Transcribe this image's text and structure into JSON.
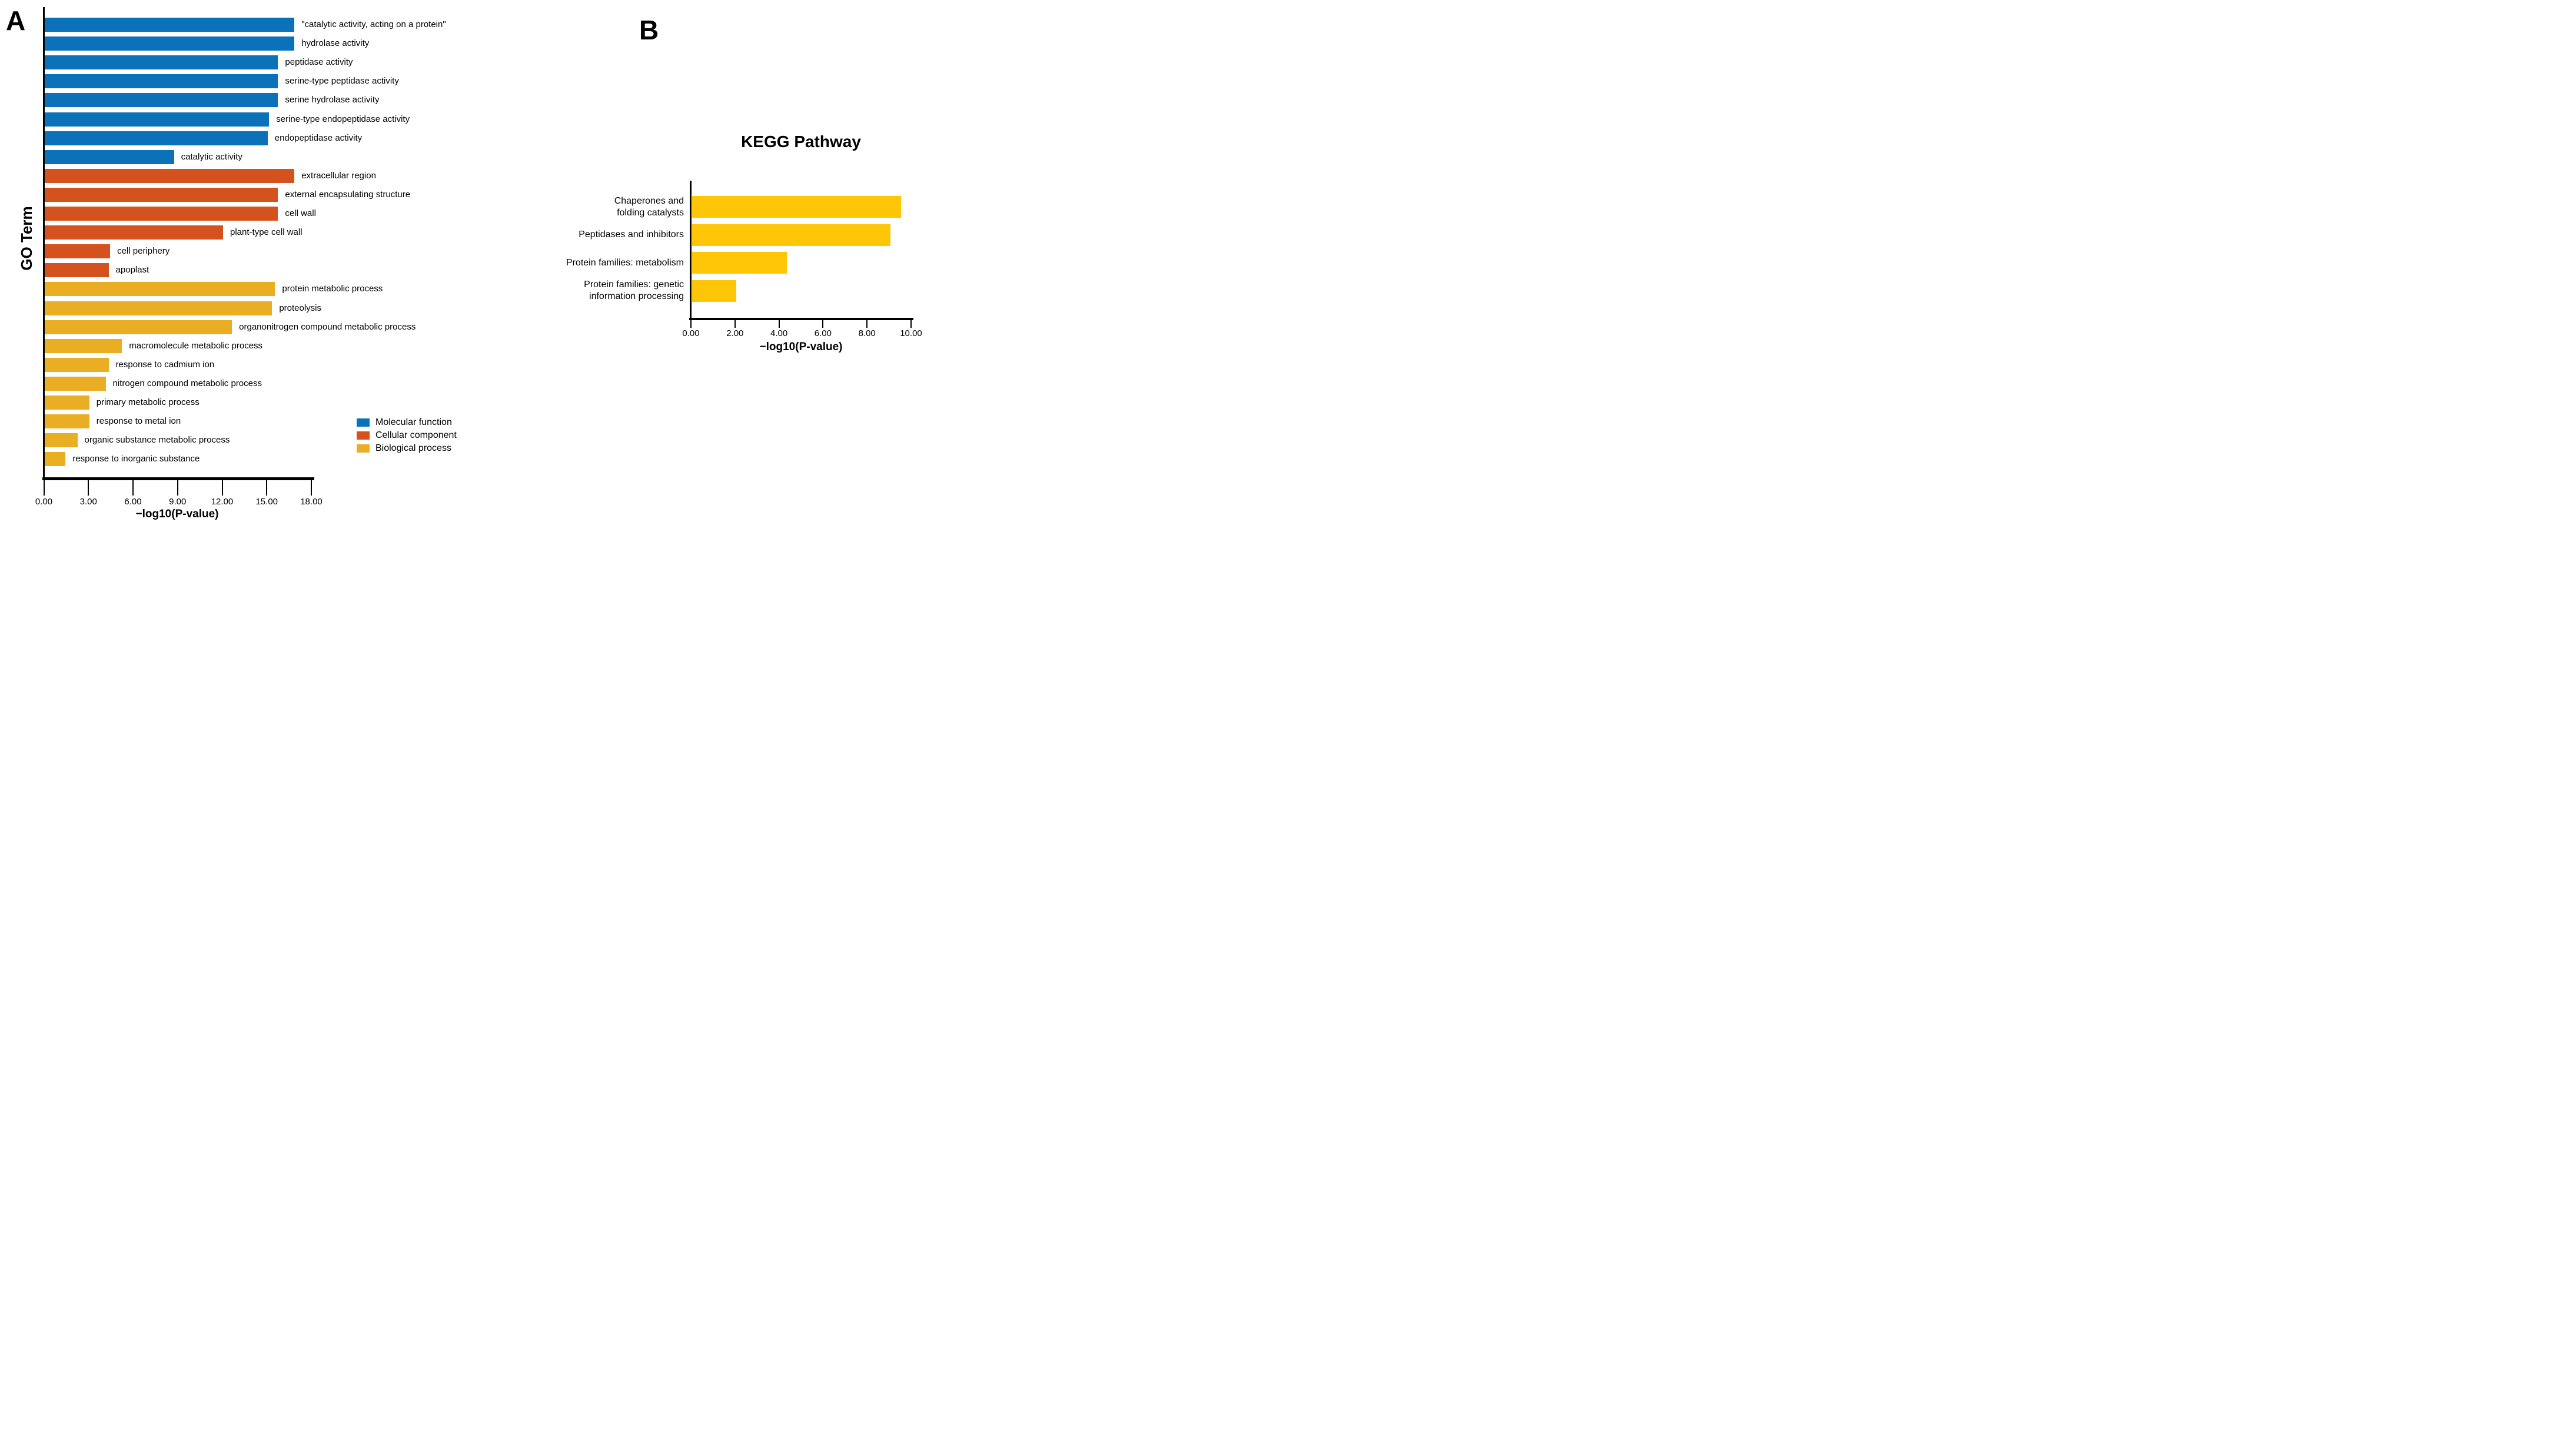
{
  "colors": {
    "molecular_function": "#0b72b9",
    "cellular_component": "#d4521d",
    "biological_process": "#e9ae23",
    "kegg_bar": "#fec606",
    "axis": "#000000",
    "text": "#000000",
    "background": "#ffffff"
  },
  "panelA": {
    "panel_label": "A"
  },
  "panelB": {
    "panel_label": "B"
  },
  "legend": {
    "items": [
      {
        "label": "Molecular function",
        "color": "#0b72b9"
      },
      {
        "label": "Cellular component",
        "color": "#d4521d"
      },
      {
        "label": "Biological process",
        "color": "#e9ae23"
      }
    ]
  },
  "chart_data": [
    {
      "id": "go-term-enrichment",
      "type": "bar",
      "orientation": "horizontal",
      "title": "",
      "xlabel": "−log10(P-value)",
      "ylabel": "GO Term",
      "xlim": [
        0,
        18
      ],
      "grid": false,
      "legend_position": "lower right inside",
      "x_ticks": [
        {
          "value": 0,
          "label": "0.00"
        },
        {
          "value": 3,
          "label": "3.00"
        },
        {
          "value": 6,
          "label": "6.00"
        },
        {
          "value": 9,
          "label": "9.00"
        },
        {
          "value": 12,
          "label": "12.00"
        },
        {
          "value": 15,
          "label": "15.00"
        },
        {
          "value": 18,
          "label": "18.00"
        }
      ],
      "bars": [
        {
          "category": "\"catalytic activity, acting on a protein\"",
          "value": 16.8,
          "group": "Molecular function"
        },
        {
          "category": "hydrolase activity",
          "value": 16.8,
          "group": "Molecular function"
        },
        {
          "category": "peptidase activity",
          "value": 15.7,
          "group": "Molecular function"
        },
        {
          "category": "serine-type peptidase activity",
          "value": 15.7,
          "group": "Molecular function"
        },
        {
          "category": "serine hydrolase activity",
          "value": 15.7,
          "group": "Molecular function"
        },
        {
          "category": "serine-type endopeptidase activity",
          "value": 15.1,
          "group": "Molecular function"
        },
        {
          "category": "endopeptidase activity",
          "value": 15.0,
          "group": "Molecular function"
        },
        {
          "category": "catalytic activity",
          "value": 8.7,
          "group": "Molecular function"
        },
        {
          "category": "extracellular region",
          "value": 16.8,
          "group": "Cellular component"
        },
        {
          "category": "external encapsulating structure",
          "value": 15.7,
          "group": "Cellular component"
        },
        {
          "category": "cell wall",
          "value": 15.7,
          "group": "Cellular component"
        },
        {
          "category": "plant-type cell wall",
          "value": 12.0,
          "group": "Cellular component"
        },
        {
          "category": "cell periphery",
          "value": 4.4,
          "group": "Cellular component"
        },
        {
          "category": "apoplast",
          "value": 4.3,
          "group": "Cellular component"
        },
        {
          "category": "protein metabolic process",
          "value": 15.5,
          "group": "Biological process"
        },
        {
          "category": "proteolysis",
          "value": 15.3,
          "group": "Biological process"
        },
        {
          "category": "organonitrogen compound metabolic process",
          "value": 12.6,
          "group": "Biological process"
        },
        {
          "category": "macromolecule metabolic process",
          "value": 5.2,
          "group": "Biological process"
        },
        {
          "category": "response to cadmium ion",
          "value": 4.3,
          "group": "Biological process"
        },
        {
          "category": "nitrogen compound metabolic process",
          "value": 4.1,
          "group": "Biological process"
        },
        {
          "category": "primary metabolic process",
          "value": 3.0,
          "group": "Biological process"
        },
        {
          "category": "response to metal ion",
          "value": 3.0,
          "group": "Biological process"
        },
        {
          "category": "organic substance metabolic process",
          "value": 2.2,
          "group": "Biological process"
        },
        {
          "category": "response to inorganic substance",
          "value": 1.4,
          "group": "Biological process"
        }
      ]
    },
    {
      "id": "kegg-pathway",
      "type": "bar",
      "orientation": "horizontal",
      "title": "KEGG Pathway",
      "xlabel": "−log10(P-value)",
      "ylabel": "",
      "xlim": [
        0,
        10
      ],
      "grid": false,
      "bar_color": "#fec606",
      "x_ticks": [
        {
          "value": 0,
          "label": "0.00"
        },
        {
          "value": 2,
          "label": "2.00"
        },
        {
          "value": 4,
          "label": "4.00"
        },
        {
          "value": 6,
          "label": "6.00"
        },
        {
          "value": 8,
          "label": "8.00"
        },
        {
          "value": 10,
          "label": "10.00"
        }
      ],
      "bars": [
        {
          "category": "Chaperones and\nfolding catalysts",
          "value": 9.5
        },
        {
          "category": "Peptidases and inhibitors",
          "value": 9.0
        },
        {
          "category": "Protein families: metabolism",
          "value": 4.3
        },
        {
          "category": "Protein families: genetic\ninformation processing",
          "value": 2.0
        }
      ]
    }
  ]
}
